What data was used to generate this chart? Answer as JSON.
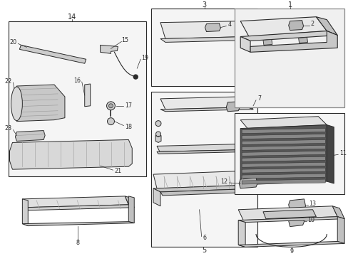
{
  "bg": "#ffffff",
  "line_color": "#2a2a2a",
  "fill_light": "#f0f0f0",
  "fill_mid": "#d8d8d8",
  "fill_dark": "#888888",
  "fig_w": 4.89,
  "fig_h": 3.6,
  "dpi": 100,
  "label_fs": 6.5,
  "small_fs": 5.8
}
